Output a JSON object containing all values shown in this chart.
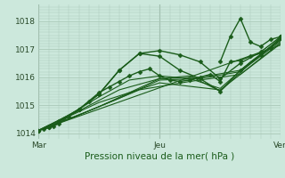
{
  "title": "Pression niveau de la mer( hPa )",
  "bg_color": "#cce8dc",
  "grid_color": "#aac8b8",
  "line_color": "#1a5c1a",
  "xlim": [
    0,
    48
  ],
  "ylim": [
    1013.8,
    1018.6
  ],
  "yticks": [
    1014,
    1015,
    1016,
    1017,
    1018
  ],
  "xtick_labels": [
    "Mar",
    "Jeu",
    "Ven"
  ],
  "xtick_positions": [
    0,
    24,
    48
  ],
  "vline_positions": [
    0,
    24,
    48
  ],
  "series": [
    {
      "x": [
        0,
        1,
        2,
        3,
        4,
        6,
        8,
        10,
        12,
        14,
        16,
        18,
        20,
        22,
        24,
        26,
        28,
        30,
        32,
        34,
        36,
        38,
        40,
        42,
        44,
        46,
        48
      ],
      "y": [
        1014.1,
        1014.15,
        1014.2,
        1014.25,
        1014.35,
        1014.6,
        1014.85,
        1015.15,
        1015.45,
        1015.65,
        1015.85,
        1016.05,
        1016.2,
        1016.3,
        1016.05,
        1015.9,
        1015.85,
        1015.9,
        1016.0,
        1016.1,
        1015.85,
        1016.55,
        1016.6,
        1016.75,
        1016.85,
        1017.05,
        1017.45
      ],
      "marker": "D",
      "markersize": 2.5,
      "linewidth": 1.0
    },
    {
      "x": [
        0,
        2,
        4,
        8,
        12,
        16,
        20,
        24,
        28,
        32,
        36,
        40,
        44,
        48
      ],
      "y": [
        1014.1,
        1014.2,
        1014.4,
        1014.85,
        1015.4,
        1016.25,
        1016.85,
        1016.95,
        1016.8,
        1016.55,
        1015.95,
        1016.5,
        1016.9,
        1017.45
      ],
      "marker": "D",
      "markersize": 2.5,
      "linewidth": 1.0
    },
    {
      "x": [
        0,
        4,
        8,
        12,
        16,
        20,
        24,
        28,
        32,
        36,
        40,
        44,
        48
      ],
      "y": [
        1014.1,
        1014.45,
        1014.85,
        1015.4,
        1016.25,
        1016.85,
        1016.75,
        1016.25,
        1015.95,
        1015.5,
        1016.25,
        1016.8,
        1017.4
      ],
      "marker": "D",
      "markersize": 2.5,
      "linewidth": 1.0
    },
    {
      "x": [
        0,
        6,
        12,
        18,
        24,
        30,
        36,
        42,
        48
      ],
      "y": [
        1014.1,
        1014.65,
        1015.3,
        1015.9,
        1016.05,
        1015.95,
        1015.6,
        1016.55,
        1017.35
      ],
      "marker": null,
      "markersize": 0,
      "linewidth": 0.8
    },
    {
      "x": [
        0,
        6,
        12,
        18,
        24,
        30,
        36,
        42,
        48
      ],
      "y": [
        1014.1,
        1014.5,
        1014.95,
        1015.45,
        1015.95,
        1016.05,
        1015.5,
        1016.5,
        1017.35
      ],
      "marker": null,
      "markersize": 0,
      "linewidth": 0.8
    },
    {
      "x": [
        0,
        8,
        16,
        24,
        32,
        40,
        48
      ],
      "y": [
        1014.1,
        1014.8,
        1015.55,
        1015.95,
        1016.0,
        1016.25,
        1017.35
      ],
      "marker": null,
      "markersize": 0,
      "linewidth": 0.8
    },
    {
      "x": [
        0,
        8,
        16,
        24,
        32,
        40,
        48
      ],
      "y": [
        1014.1,
        1014.65,
        1015.25,
        1015.9,
        1015.95,
        1016.2,
        1017.3
      ],
      "marker": null,
      "markersize": 0,
      "linewidth": 0.8
    },
    {
      "x": [
        0,
        10,
        20,
        30,
        40,
        48
      ],
      "y": [
        1014.1,
        1014.8,
        1015.55,
        1015.85,
        1016.1,
        1017.25
      ],
      "marker": null,
      "markersize": 0,
      "linewidth": 0.8
    },
    {
      "x": [
        0,
        48
      ],
      "y": [
        1014.1,
        1017.15
      ],
      "marker": null,
      "markersize": 0,
      "linewidth": 0.8
    },
    {
      "x": [
        0,
        12,
        24,
        36,
        48
      ],
      "y": [
        1014.1,
        1015.1,
        1015.8,
        1015.55,
        1017.2
      ],
      "marker": null,
      "markersize": 0,
      "linewidth": 0.8
    },
    {
      "x": [
        36,
        38,
        40,
        42,
        44,
        46,
        48
      ],
      "y": [
        1016.55,
        1017.45,
        1018.1,
        1017.25,
        1017.1,
        1017.35,
        1017.45
      ],
      "marker": "D",
      "markersize": 2.5,
      "linewidth": 1.0
    }
  ]
}
